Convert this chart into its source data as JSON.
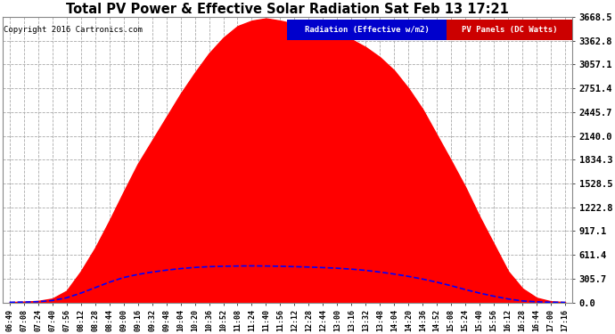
{
  "title": "Total PV Power & Effective Solar Radiation Sat Feb 13 17:21",
  "copyright": "Copyright 2016 Cartronics.com",
  "background_color": "#ffffff",
  "plot_bg_color": "#ffffff",
  "grid_color": "#aaaaaa",
  "title_color": "#000000",
  "copyright_color": "#000000",
  "ylabel_right": [
    "0.0",
    "305.7",
    "611.4",
    "917.1",
    "1222.8",
    "1528.5",
    "1834.3",
    "2140.0",
    "2445.7",
    "2751.4",
    "3057.1",
    "3362.8",
    "3668.5"
  ],
  "ymax": 3668.5,
  "ymin": 0.0,
  "legend_radiation_color": "#0000cc",
  "legend_pv_color": "#cc0000",
  "legend_radiation_text": "Radiation (Effective w/m2)",
  "legend_pv_text": "PV Panels (DC Watts)",
  "x_tick_labels": [
    "06:49",
    "07:08",
    "07:24",
    "07:40",
    "07:56",
    "08:12",
    "08:28",
    "08:44",
    "09:00",
    "09:16",
    "09:32",
    "09:48",
    "10:04",
    "10:20",
    "10:36",
    "10:52",
    "11:08",
    "11:24",
    "11:40",
    "11:56",
    "12:12",
    "12:28",
    "12:44",
    "13:00",
    "13:16",
    "13:32",
    "13:48",
    "14:04",
    "14:20",
    "14:36",
    "14:52",
    "15:08",
    "15:24",
    "15:40",
    "15:56",
    "16:12",
    "16:28",
    "16:44",
    "17:00",
    "17:16"
  ],
  "pv_shape_color": "#ff0000",
  "radiation_line_color": "#0000ff",
  "pv_values": [
    5,
    10,
    20,
    50,
    150,
    400,
    700,
    1050,
    1420,
    1780,
    2080,
    2380,
    2680,
    2950,
    3200,
    3400,
    3550,
    3620,
    3650,
    3620,
    3580,
    3540,
    3500,
    3450,
    3380,
    3280,
    3150,
    2980,
    2750,
    2480,
    2150,
    1820,
    1480,
    1100,
    750,
    400,
    180,
    60,
    15,
    5
  ],
  "rad_values": [
    2,
    5,
    10,
    25,
    60,
    120,
    190,
    260,
    320,
    360,
    390,
    415,
    435,
    450,
    460,
    465,
    468,
    470,
    468,
    465,
    460,
    455,
    448,
    440,
    428,
    412,
    390,
    365,
    335,
    300,
    260,
    215,
    165,
    120,
    80,
    45,
    20,
    8,
    3,
    1
  ]
}
